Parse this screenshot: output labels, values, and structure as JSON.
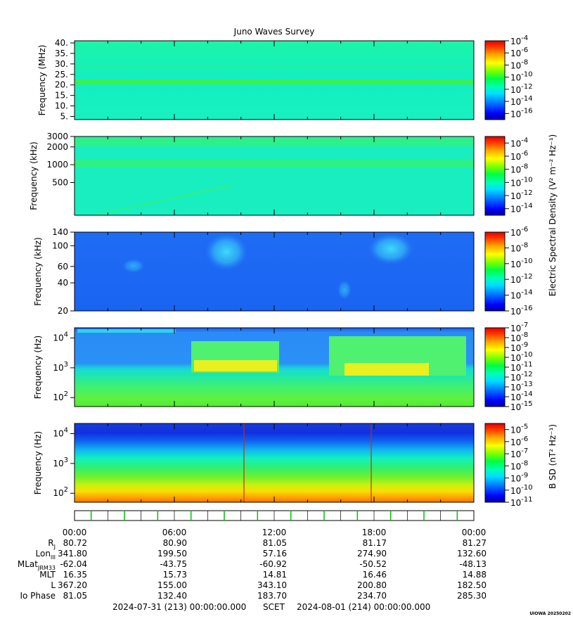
{
  "chart_data": {
    "type": "heatmap",
    "title": "Juno Waves Survey",
    "colorbar_label_electric": "Electric Spectral Density (V² m⁻² Hz⁻¹)",
    "colorbar_label_magnetic": "B SD (nT² Hz⁻¹)",
    "panels": [
      {
        "ylabel": "Frequency (MHz)",
        "yscale": "linear",
        "ylim": [
          3.5,
          41
        ],
        "yticks": [
          "5.",
          "10.",
          "15.",
          "20.",
          "25.",
          "30.",
          "35.",
          "40."
        ],
        "colorbar": {
          "log_min": -17,
          "log_max": -4,
          "ticks": [
            "10⁻⁴",
            "10⁻⁶",
            "10⁻⁸",
            "10⁻¹⁰",
            "10⁻¹²",
            "10⁻¹⁴",
            "10⁻¹⁶"
          ]
        }
      },
      {
        "ylabel": "Frequency (kHz)",
        "yscale": "log",
        "ylim": [
          140,
          3000
        ],
        "yticks": [
          "3000",
          "2000",
          "1000",
          "500"
        ],
        "colorbar": {
          "log_min": -15,
          "log_max": -3,
          "ticks": [
            "10⁻⁴",
            "10⁻⁶",
            "10⁻⁸",
            "10⁻¹⁰",
            "10⁻¹²",
            "10⁻¹⁴"
          ]
        }
      },
      {
        "ylabel": "Frequency (kHz)",
        "yscale": "log",
        "ylim": [
          20,
          140
        ],
        "yticks": [
          "140",
          "100",
          "60",
          "40",
          "20"
        ],
        "colorbar": {
          "log_min": -16,
          "log_max": -6,
          "ticks": [
            "10⁻⁶",
            "10⁻⁸",
            "10⁻¹⁰",
            "10⁻¹²",
            "10⁻¹⁴",
            "10⁻¹⁶"
          ]
        }
      },
      {
        "ylabel": "Frequency (Hz)",
        "yscale": "log",
        "ylim": [
          50,
          22000
        ],
        "yticks": [
          "10⁴",
          "10³",
          "10²"
        ],
        "colorbar": {
          "log_min": -15,
          "log_max": -7,
          "ticks": [
            "10⁻⁷",
            "10⁻⁸",
            "10⁻⁹",
            "10⁻¹⁰",
            "10⁻¹¹",
            "10⁻¹²",
            "10⁻¹³",
            "10⁻¹⁴",
            "10⁻¹⁵"
          ]
        }
      },
      {
        "ylabel": "Frequency (Hz)",
        "yscale": "log",
        "ylim": [
          50,
          22000
        ],
        "yticks": [
          "10⁴",
          "10³",
          "10²"
        ],
        "colorbar": {
          "log_min": -11,
          "log_max": -4.5,
          "ticks": [
            "10⁻⁵",
            "10⁻⁶",
            "10⁻⁷",
            "10⁻⁸",
            "10⁻⁹",
            "10⁻¹⁰",
            "10⁻¹¹"
          ]
        }
      }
    ],
    "x_axis": {
      "ticks": [
        "00:00",
        "06:00",
        "12:00",
        "18:00",
        "00:00"
      ],
      "start": "2024-07-31 (213) 00:00:00.000",
      "label": "SCET",
      "end": "2024-08-01 (214) 00:00:00.000"
    },
    "ephemeris": {
      "rows": [
        {
          "label": "R",
          "sub": "J",
          "values": [
            "80.72",
            "80.90",
            "81.05",
            "81.17",
            "81.27"
          ]
        },
        {
          "label": "Lon",
          "sub": "III",
          "values": [
            "341.80",
            "199.50",
            "57.16",
            "274.90",
            "132.60"
          ]
        },
        {
          "label": "MLat",
          "sub": "JRM33",
          "values": [
            "-62.04",
            "-43.75",
            "-60.92",
            "-50.52",
            "-48.13"
          ]
        },
        {
          "label": "MLT",
          "sub": "",
          "values": [
            "16.35",
            "15.73",
            "14.81",
            "16.46",
            "14.88"
          ]
        },
        {
          "label": "L",
          "sub": "",
          "values": [
            "367.20",
            "155.00",
            "343.10",
            "200.80",
            "182.50"
          ]
        },
        {
          "label": "Io Phase",
          "sub": "",
          "values": [
            "81.05",
            "132.40",
            "183.70",
            "234.70",
            "285.30"
          ]
        }
      ]
    },
    "watermark": "UIOWA 20250202"
  }
}
